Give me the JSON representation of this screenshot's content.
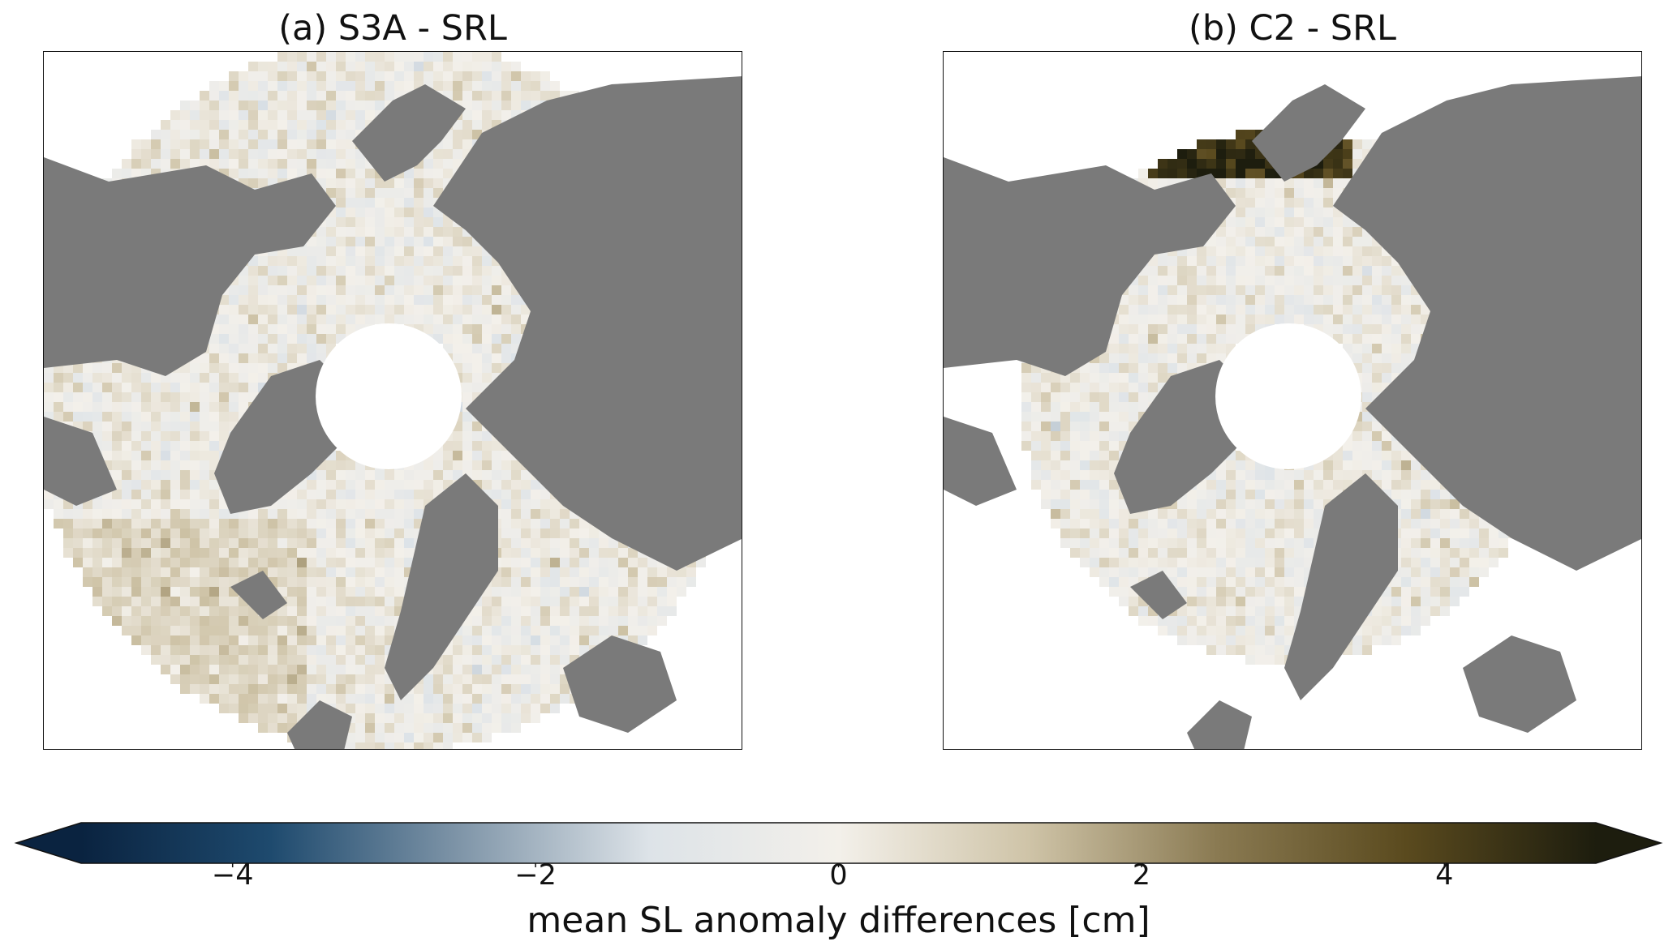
{
  "panels": [
    {
      "id": "a",
      "title": "(a) S3A - SRL",
      "coverage": "full_ocean_with_pole_hole",
      "dark_patch_region": "none"
    },
    {
      "id": "b",
      "title": "(b) C2 - SRL",
      "coverage": "arctic_ocean_and_shelves",
      "dark_patch_region": "east_siberian_coast"
    }
  ],
  "colorbar": {
    "label": "mean SL anomaly differences [cm]",
    "range": [
      -5,
      5
    ],
    "extend": "both",
    "ticks": [
      {
        "value": -4,
        "text": "−4"
      },
      {
        "value": -2,
        "text": "−2"
      },
      {
        "value": 0,
        "text": "0"
      },
      {
        "value": 2,
        "text": "2"
      },
      {
        "value": 4,
        "text": "4"
      }
    ],
    "colormap_stops": [
      "#0a2340",
      "#1e4a6e",
      "#7f95a8",
      "#dde3e8",
      "#f3f0ea",
      "#cfc4a8",
      "#8a7a52",
      "#5a4a1e",
      "#1d1d0e"
    ]
  },
  "land_color": "#7a7a7a",
  "no_data_color": "#ffffff"
}
